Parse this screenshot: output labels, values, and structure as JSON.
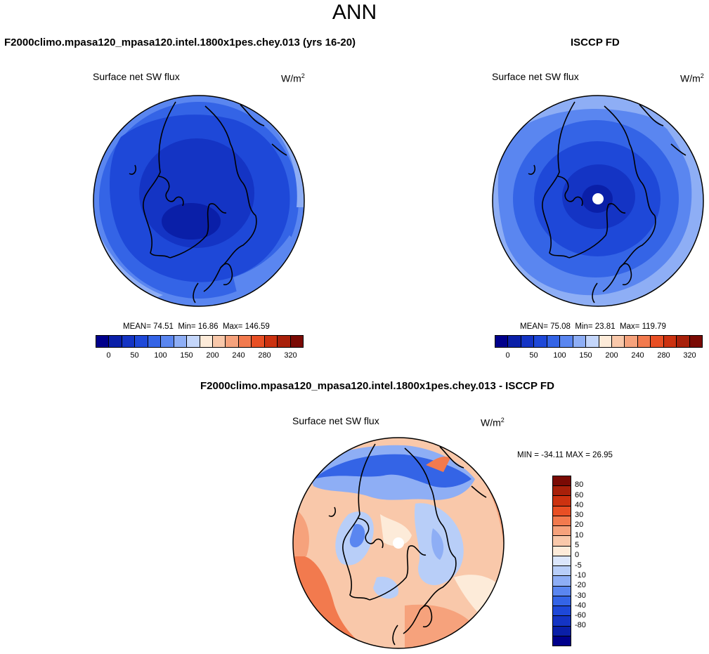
{
  "title": "ANN",
  "panel_left": {
    "title": "F2000climo.mpasa120_mpasa120.intel.1800x1pes.chey.013 (yrs 16-20)",
    "variable": "Surface net SW flux",
    "units_base": "W/m",
    "units_exp": "2",
    "stats": {
      "mean_label": "MEAN=",
      "mean": "74.51",
      "min_label": "Min=",
      "min": "16.86",
      "max_label": "Max=",
      "max": "146.59"
    }
  },
  "panel_right": {
    "title": "ISCCP FD",
    "variable": "Surface net SW flux",
    "units_base": "W/m",
    "units_exp": "2",
    "stats": {
      "mean_label": "MEAN=",
      "mean": "75.08",
      "min_label": "Min=",
      "min": "23.81",
      "max_label": "Max=",
      "max": "119.79"
    }
  },
  "panel_diff": {
    "title": "F2000climo.mpasa120_mpasa120.intel.1800x1pes.chey.013 - ISCCP FD",
    "variable": "Surface net SW flux",
    "units_base": "W/m",
    "units_exp": "2",
    "minmax": "MIN = -34.11  MAX =  26.95"
  },
  "colorbar_main": {
    "colors": [
      "#00008b",
      "#0a1fa8",
      "#1434c4",
      "#1e48d8",
      "#3464e6",
      "#5a86f0",
      "#8eaef5",
      "#c4d6fa",
      "#fdebd9",
      "#f9c8aa",
      "#f6a27c",
      "#f27a4e",
      "#e84f24",
      "#cc3210",
      "#a8200a",
      "#7a0a04"
    ],
    "tick_labels": [
      "0",
      "50",
      "100",
      "150",
      "200",
      "240",
      "280",
      "320"
    ]
  },
  "colorbar_diff": {
    "colors": [
      "#7a0a04",
      "#a8200a",
      "#cc3210",
      "#e84f24",
      "#f27a4e",
      "#f6a27c",
      "#f9c8aa",
      "#fdebd9",
      "#dbe6fb",
      "#b8cef8",
      "#8eaef5",
      "#5a86f0",
      "#3464e6",
      "#1e48d8",
      "#1434c4",
      "#0a1fa8",
      "#00008b"
    ],
    "tick_labels": [
      "80",
      "60",
      "40",
      "30",
      "20",
      "10",
      "5",
      "0",
      "-5",
      "-10",
      "-20",
      "-30",
      "-40",
      "-60",
      "-80"
    ]
  }
}
